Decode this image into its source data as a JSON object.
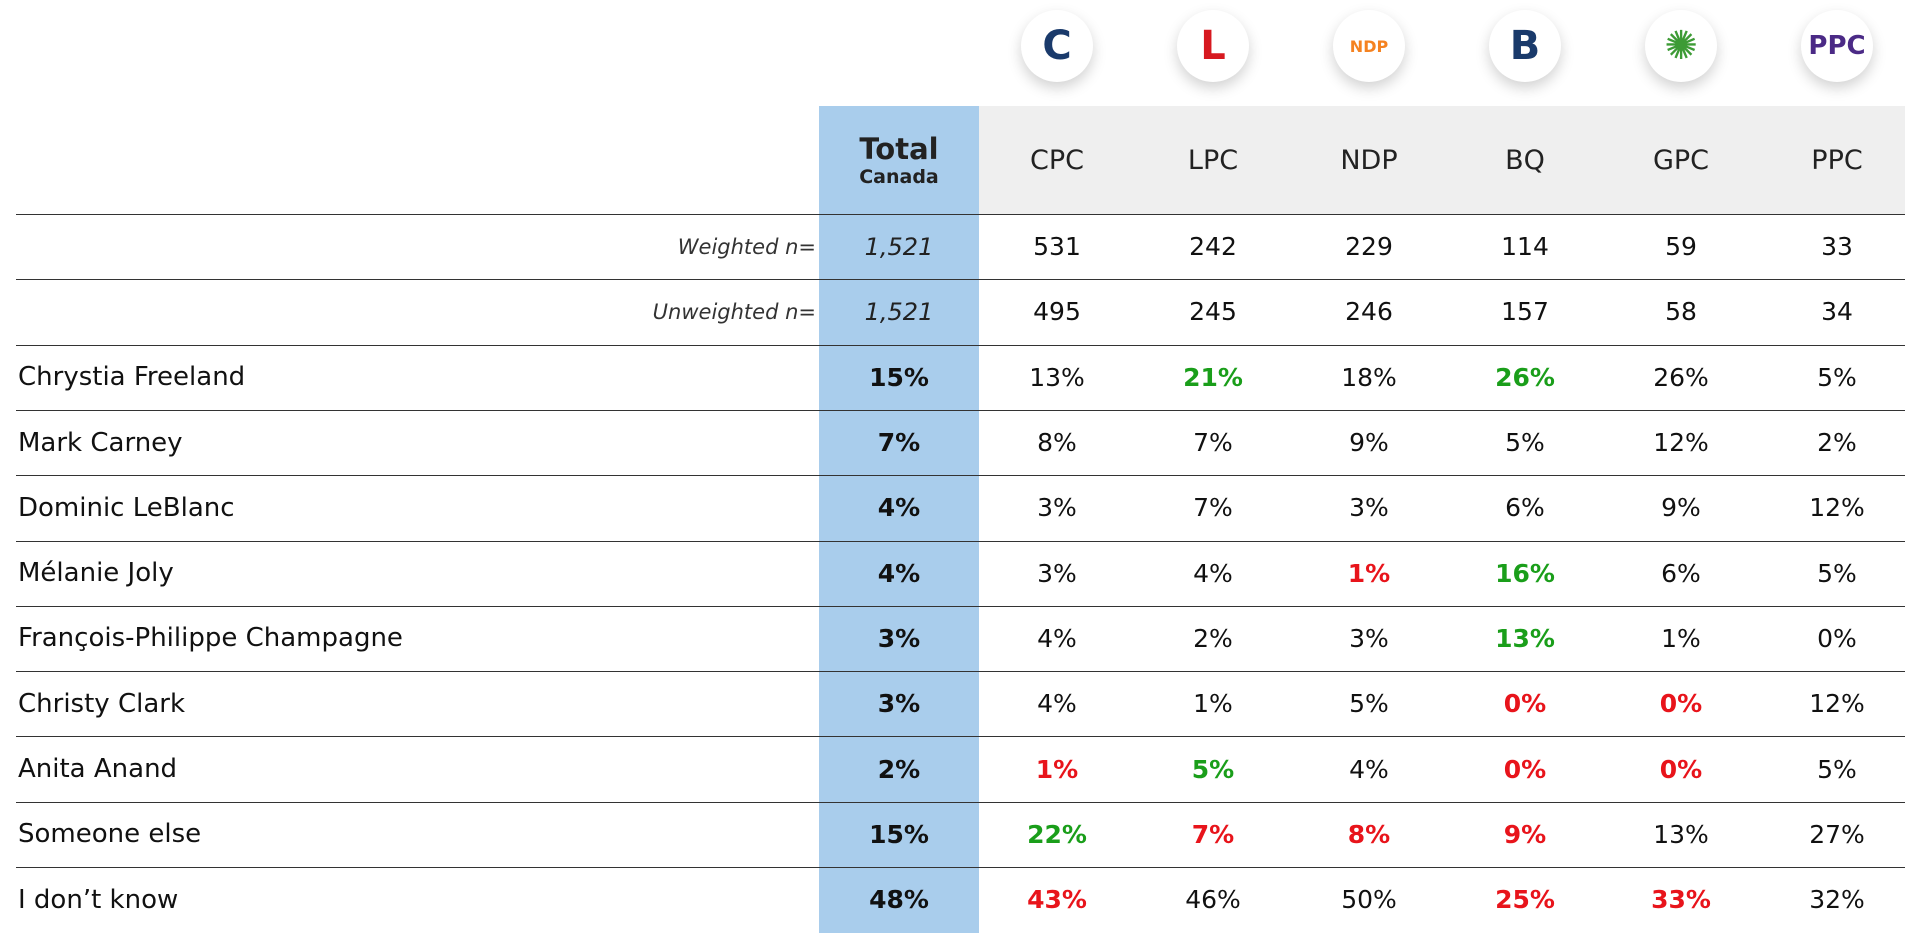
{
  "table": {
    "header": {
      "total_title": "Total",
      "total_subtitle": "Canada"
    },
    "columns": [
      {
        "name": "CPC"
      },
      {
        "name": "LPC"
      },
      {
        "name": "NDP",
        "logo": "NDP"
      },
      {
        "name": "BQ"
      },
      {
        "name": "GPC"
      },
      {
        "name": "PPC",
        "logo": "PPC"
      }
    ],
    "sample_rows": [
      {
        "label": "Weighted n=",
        "total": "1,521",
        "values": [
          "531",
          "242",
          "229",
          "114",
          "59",
          "33"
        ]
      },
      {
        "label": "Unweighted n=",
        "total": "1,521",
        "values": [
          "495",
          "245",
          "246",
          "157",
          "58",
          "34"
        ]
      }
    ],
    "rows": [
      {
        "label": "Chrystia Freeland",
        "total": "15%",
        "values": [
          "13%",
          "21%",
          "18%",
          "26%",
          "26%",
          "5%"
        ],
        "colors": [
          null,
          "#1a9e1a",
          null,
          "#1a9e1a",
          null,
          null
        ]
      },
      {
        "label": "Mark Carney",
        "total": "7%",
        "values": [
          "8%",
          "7%",
          "9%",
          "5%",
          "12%",
          "2%"
        ],
        "colors": [
          null,
          null,
          null,
          null,
          null,
          null
        ]
      },
      {
        "label": "Dominic LeBlanc",
        "total": "4%",
        "values": [
          "3%",
          "7%",
          "3%",
          "6%",
          "9%",
          "12%"
        ],
        "colors": [
          null,
          null,
          null,
          null,
          null,
          null
        ]
      },
      {
        "label": "Mélanie Joly",
        "total": "4%",
        "values": [
          "3%",
          "4%",
          "1%",
          "16%",
          "6%",
          "5%"
        ],
        "colors": [
          null,
          null,
          "#e8141b",
          "#1a9e1a",
          null,
          null
        ]
      },
      {
        "label": "François-Philippe Champagne",
        "total": "3%",
        "values": [
          "4%",
          "2%",
          "3%",
          "13%",
          "1%",
          "0%"
        ],
        "colors": [
          null,
          null,
          null,
          "#1a9e1a",
          null,
          null
        ]
      },
      {
        "label": "Christy Clark",
        "total": "3%",
        "values": [
          "4%",
          "1%",
          "5%",
          "0%",
          "0%",
          "12%"
        ],
        "colors": [
          null,
          null,
          null,
          "#e8141b",
          "#e8141b",
          null
        ]
      },
      {
        "label": "Anita Anand",
        "total": "2%",
        "values": [
          "1%",
          "5%",
          "4%",
          "0%",
          "0%",
          "5%"
        ],
        "colors": [
          "#e8141b",
          "#1a9e1a",
          null,
          "#e8141b",
          "#e8141b",
          null
        ]
      },
      {
        "label": "Someone else",
        "total": "15%",
        "values": [
          "22%",
          "7%",
          "8%",
          "9%",
          "13%",
          "27%"
        ],
        "colors": [
          "#1a9e1a",
          "#e8141b",
          "#e8141b",
          "#e8141b",
          null,
          null
        ]
      },
      {
        "label": "I don’t know",
        "total": "48%",
        "values": [
          "43%",
          "46%",
          "50%",
          "25%",
          "33%",
          "32%"
        ],
        "colors": [
          "#e8141b",
          null,
          null,
          "#e8141b",
          "#e8141b",
          null
        ]
      }
    ]
  }
}
